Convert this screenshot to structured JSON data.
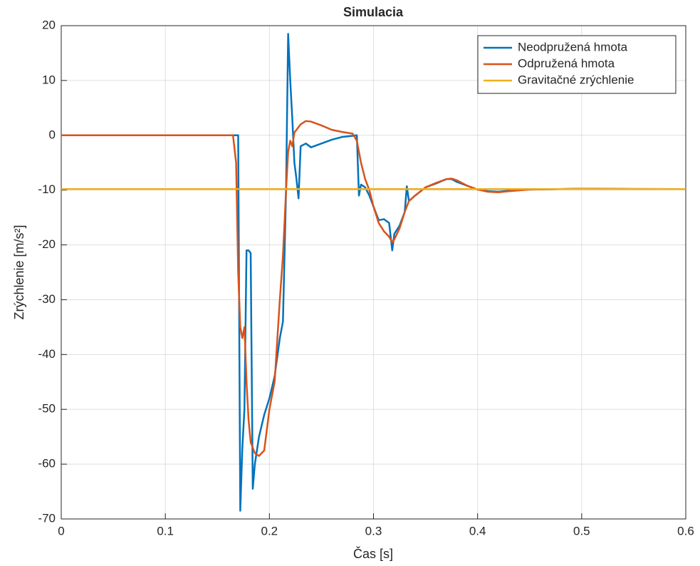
{
  "chart_data": {
    "type": "line",
    "title": "Simulacia",
    "xlabel": "Čas [s]",
    "ylabel": "Zrýchlenie [m/s²]",
    "x": [
      0,
      0.165,
      0.168,
      0.17,
      0.172,
      0.174,
      0.176,
      0.178,
      0.18,
      0.182,
      0.184,
      0.186,
      0.19,
      0.195,
      0.2,
      0.205,
      0.21,
      0.213,
      0.216,
      0.218,
      0.22,
      0.222,
      0.224,
      0.226,
      0.228,
      0.23,
      0.235,
      0.24,
      0.25,
      0.26,
      0.27,
      0.28,
      0.284,
      0.286,
      0.288,
      0.292,
      0.296,
      0.3,
      0.305,
      0.31,
      0.315,
      0.318,
      0.32,
      0.325,
      0.33,
      0.332,
      0.334,
      0.34,
      0.35,
      0.36,
      0.37,
      0.375,
      0.38,
      0.39,
      0.4,
      0.41,
      0.42,
      0.43,
      0.45,
      0.5,
      0.55,
      0.6
    ],
    "series": [
      {
        "name": "Neodpružená hmota",
        "color": "#0072bd",
        "values": [
          0,
          0,
          0,
          0,
          -68.5,
          -57,
          -50,
          -21,
          -21,
          -21.5,
          -64.5,
          -60,
          -55,
          -51,
          -48,
          -44,
          -37,
          -34,
          -10,
          18.5,
          10,
          3,
          -5,
          -8,
          -11.5,
          -2,
          -1.5,
          -2.2,
          -1.5,
          -0.8,
          -0.3,
          -0.1,
          0,
          -11,
          -9,
          -9.5,
          -11,
          -13,
          -15.5,
          -15.3,
          -16,
          -21,
          -18,
          -16.5,
          -14,
          -9.3,
          -12,
          -11,
          -9.5,
          -8.8,
          -8,
          -8,
          -8.5,
          -9.2,
          -9.9,
          -10.2,
          -10.3,
          -10.1,
          -9.9,
          -9.75,
          -9.8,
          -9.81
        ]
      },
      {
        "name": "Odpružená hmota",
        "color": "#d95319",
        "values": [
          0,
          0,
          -5,
          -25,
          -35,
          -37,
          -35,
          -45,
          -52,
          -56,
          -57,
          -58,
          -58.5,
          -57.5,
          -50,
          -45,
          -30,
          -22,
          -10,
          -3,
          -1,
          -2,
          0.5,
          1,
          1.5,
          2,
          2.6,
          2.5,
          1.8,
          1,
          0.6,
          0.3,
          -1,
          -3,
          -5,
          -8,
          -10,
          -13,
          -16,
          -17.5,
          -18.5,
          -19.5,
          -19,
          -17,
          -14,
          -13,
          -12,
          -11,
          -9.5,
          -8.7,
          -8,
          -7.9,
          -8.2,
          -9.2,
          -9.9,
          -10.3,
          -10.4,
          -10.2,
          -9.9,
          -9.75,
          -9.8,
          -9.81
        ]
      },
      {
        "name": "Gravitačné zrýchlenie",
        "color": "#edb120",
        "values": [
          -9.81,
          -9.81,
          -9.81,
          -9.81,
          -9.81,
          -9.81,
          -9.81,
          -9.81,
          -9.81,
          -9.81,
          -9.81,
          -9.81,
          -9.81,
          -9.81,
          -9.81,
          -9.81,
          -9.81,
          -9.81,
          -9.81,
          -9.81,
          -9.81,
          -9.81,
          -9.81,
          -9.81,
          -9.81,
          -9.81,
          -9.81,
          -9.81,
          -9.81,
          -9.81,
          -9.81,
          -9.81,
          -9.81,
          -9.81,
          -9.81,
          -9.81,
          -9.81,
          -9.81,
          -9.81,
          -9.81,
          -9.81,
          -9.81,
          -9.81,
          -9.81,
          -9.81,
          -9.81,
          -9.81,
          -9.81,
          -9.81,
          -9.81,
          -9.81,
          -9.81,
          -9.81,
          -9.81,
          -9.81,
          -9.81,
          -9.81,
          -9.81,
          -9.81,
          -9.81,
          -9.81,
          -9.81
        ]
      }
    ],
    "xlim": [
      0,
      0.6
    ],
    "xticks": [
      0,
      0.1,
      0.2,
      0.3,
      0.4,
      0.5,
      0.6
    ],
    "ylim": [
      -70,
      20
    ],
    "yticks": [
      -70,
      -60,
      -50,
      -40,
      -30,
      -20,
      -10,
      0,
      10,
      20
    ],
    "grid": true,
    "legend": "northeast"
  }
}
